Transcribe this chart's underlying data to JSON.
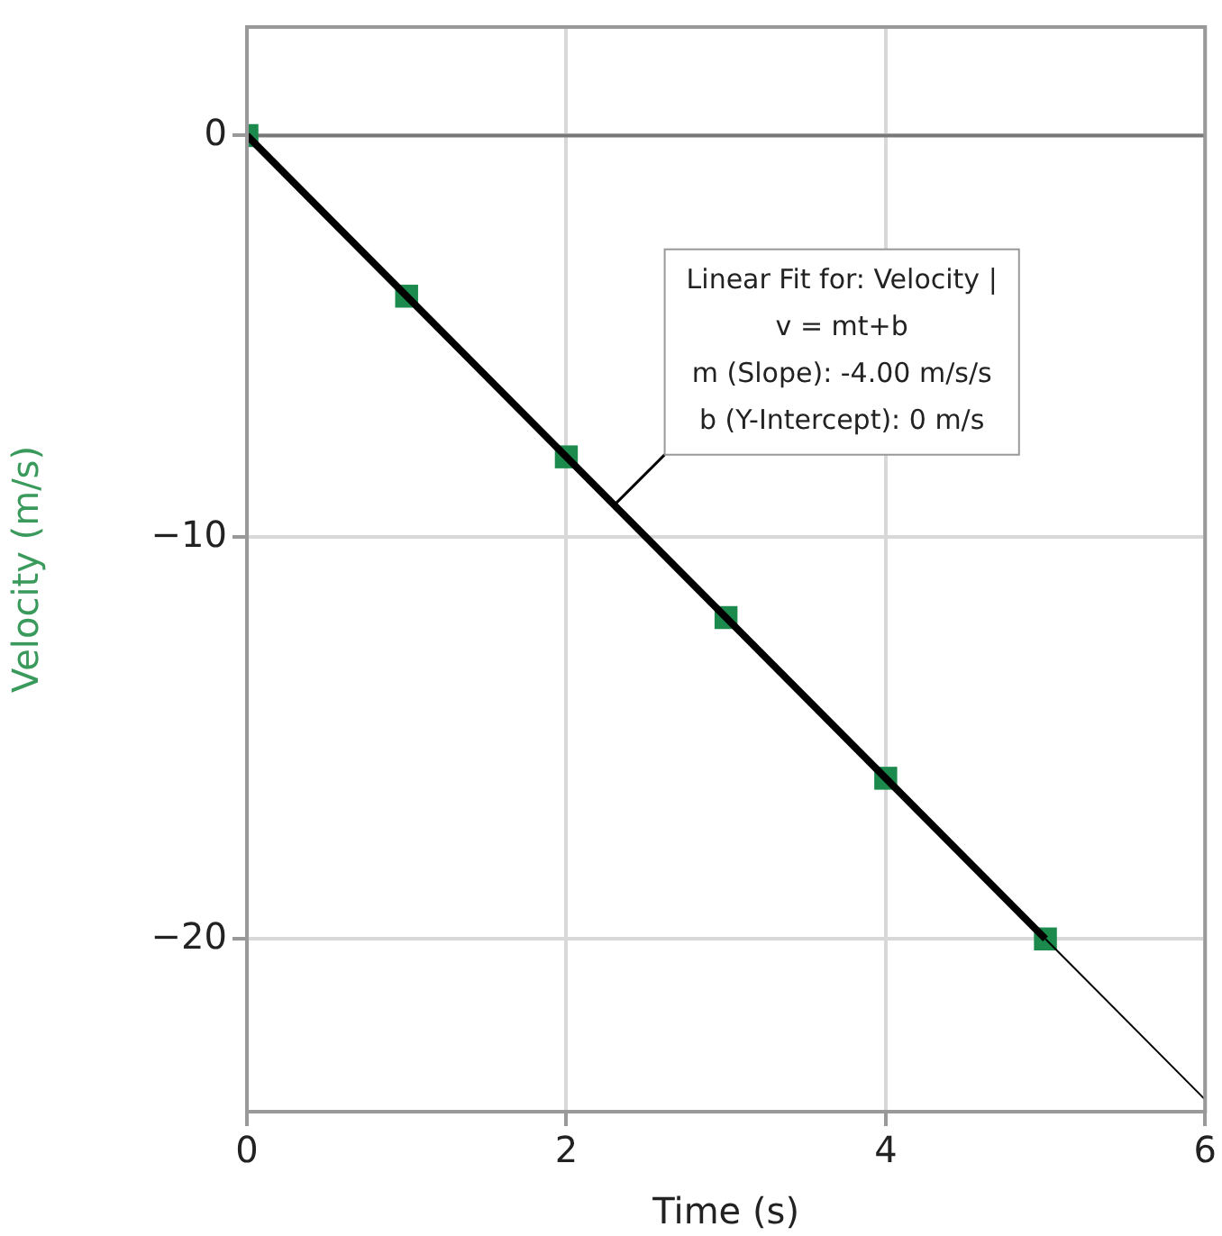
{
  "chart_data": {
    "type": "scatter",
    "xlabel": "Time (s)",
    "ylabel": "Velocity (m/s)",
    "xlim": [
      0,
      6
    ],
    "xticks": [
      0,
      2,
      4,
      6
    ],
    "ylim": [
      -24.3,
      2.7
    ],
    "yticks": [
      0,
      -10,
      -20
    ],
    "grid": true,
    "legend": false,
    "marker": "square",
    "series": [
      {
        "type": "scatter",
        "color": "#1b8a4c",
        "x": [
          0,
          1,
          2,
          3,
          4,
          5
        ],
        "values": [
          0,
          -4,
          -8,
          -12,
          -16,
          -20
        ]
      },
      {
        "type": "line",
        "color": "#000000",
        "x": [
          0,
          5
        ],
        "values": [
          0,
          -20
        ],
        "marker": "none"
      },
      {
        "type": "line",
        "color": "#000000",
        "x": [
          5,
          6
        ],
        "values": [
          -20,
          -24
        ],
        "marker": "none"
      }
    ],
    "ref_lines": [
      {
        "axis": "y",
        "value": 0,
        "color": "#777777"
      }
    ],
    "annotations": [
      {
        "text": "Linear Fit for: Velocity |\nv = mt+b\nm (Slope): -4.00 m/s/s\nb (Y-Intercept): 0 m/s",
        "x": 2.3,
        "y": -9.2
      }
    ]
  }
}
